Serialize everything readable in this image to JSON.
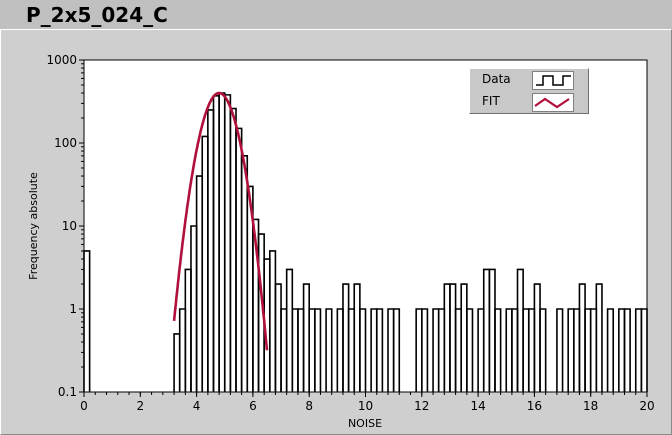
{
  "window": {
    "title": "P_2x5_024_C"
  },
  "colors": {
    "background": "#c9c9c9",
    "plot_bg": "#ffffff",
    "data_line": "#000000",
    "fit_line": "#b0103a"
  },
  "legend": {
    "items": [
      {
        "label": "Data",
        "icon": "step-line-icon"
      },
      {
        "label": "FIT",
        "icon": "zigzag-line-icon"
      }
    ]
  },
  "chart_data": {
    "type": "line",
    "xlabel": "NOISE",
    "ylabel": "Frequency absolute",
    "xlim": [
      0,
      20
    ],
    "ylim": [
      0.1,
      1000
    ],
    "yscale": "log",
    "grid": false,
    "legend_position": "top-right",
    "x_ticks": [
      "0",
      "2",
      "4",
      "6",
      "8",
      "10",
      "12",
      "14",
      "16",
      "18",
      "20"
    ],
    "y_ticks": [
      "0.1",
      "1",
      "10",
      "100",
      "1000"
    ],
    "series": [
      {
        "name": "Data",
        "style": "step",
        "bars": [
          [
            0.0,
            5
          ],
          [
            3.2,
            0.5
          ],
          [
            3.4,
            1
          ],
          [
            3.6,
            3
          ],
          [
            3.8,
            10
          ],
          [
            4.0,
            40
          ],
          [
            4.2,
            120
          ],
          [
            4.4,
            250
          ],
          [
            4.6,
            370
          ],
          [
            4.8,
            400
          ],
          [
            5.0,
            380
          ],
          [
            5.2,
            260
          ],
          [
            5.4,
            150
          ],
          [
            5.6,
            70
          ],
          [
            5.8,
            30
          ],
          [
            6.0,
            12
          ],
          [
            6.2,
            8
          ],
          [
            6.4,
            4
          ],
          [
            6.6,
            5
          ],
          [
            6.8,
            2
          ],
          [
            7.0,
            1
          ],
          [
            7.2,
            3
          ],
          [
            7.4,
            1
          ],
          [
            7.6,
            1
          ],
          [
            7.8,
            2
          ],
          [
            8.0,
            1
          ],
          [
            8.2,
            1
          ],
          [
            8.6,
            1
          ],
          [
            9.0,
            1
          ],
          [
            9.2,
            2
          ],
          [
            9.4,
            1
          ],
          [
            9.6,
            2
          ],
          [
            9.8,
            1
          ],
          [
            10.2,
            1
          ],
          [
            10.4,
            1
          ],
          [
            10.8,
            1
          ],
          [
            11.0,
            1
          ],
          [
            11.8,
            1
          ],
          [
            12.0,
            1
          ],
          [
            12.4,
            1
          ],
          [
            12.6,
            1
          ],
          [
            12.8,
            2
          ],
          [
            13.0,
            2
          ],
          [
            13.2,
            1
          ],
          [
            13.4,
            2
          ],
          [
            13.6,
            1
          ],
          [
            14.0,
            1
          ],
          [
            14.2,
            3
          ],
          [
            14.4,
            3
          ],
          [
            14.6,
            1
          ],
          [
            15.0,
            1
          ],
          [
            15.2,
            1
          ],
          [
            15.4,
            3
          ],
          [
            15.6,
            1
          ],
          [
            15.8,
            1
          ],
          [
            16.0,
            2
          ],
          [
            16.2,
            1
          ],
          [
            16.8,
            1
          ],
          [
            17.2,
            1
          ],
          [
            17.4,
            1
          ],
          [
            17.6,
            2
          ],
          [
            17.8,
            1
          ],
          [
            18.0,
            1
          ],
          [
            18.2,
            2
          ],
          [
            18.6,
            1
          ],
          [
            19.0,
            1
          ],
          [
            19.2,
            1
          ],
          [
            19.6,
            1
          ],
          [
            19.8,
            1
          ]
        ]
      },
      {
        "name": "FIT",
        "style": "gaussian",
        "amplitude": 400,
        "mean": 4.8,
        "sigma": 0.45,
        "x_range": [
          3.2,
          6.5
        ]
      }
    ]
  }
}
